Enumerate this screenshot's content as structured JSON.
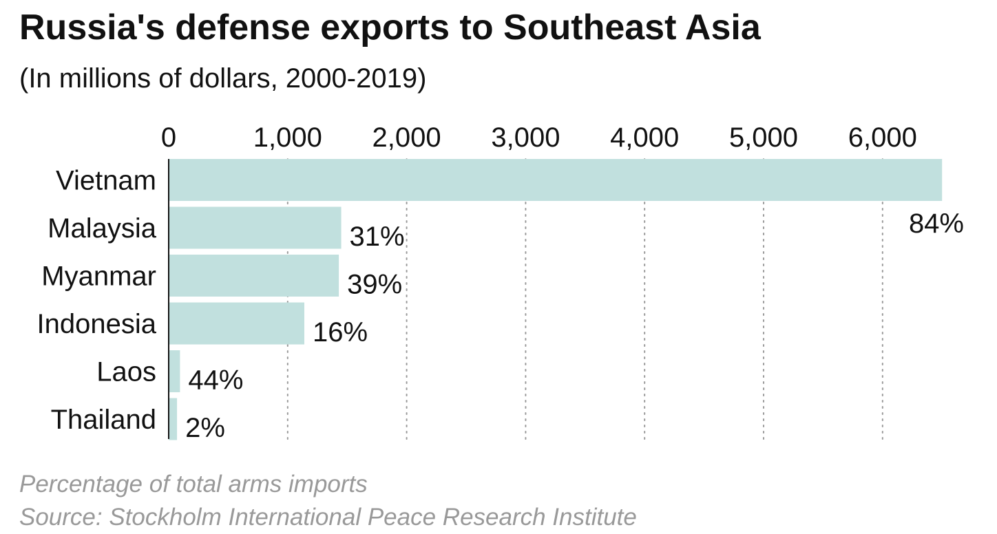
{
  "header": {
    "title": "Russia's defense exports to Southeast Asia",
    "subtitle": "(In millions of dollars, 2000-2019)"
  },
  "footer": {
    "note": "Percentage of total arms imports",
    "source": "Source: Stockholm International Peace Research Institute"
  },
  "colors": {
    "bar": "#c1e0de",
    "grid": "#999999",
    "axis": "#111111",
    "text": "#111111",
    "notes": "#999999"
  },
  "chart_data": {
    "type": "bar",
    "orientation": "horizontal",
    "title": "Russia's defense exports to Southeast Asia",
    "subtitle": "(In millions of dollars, 2000-2019)",
    "categories": [
      "Vietnam",
      "Malaysia",
      "Myanmar",
      "Indonesia",
      "Laos",
      "Thailand"
    ],
    "values": [
      6500,
      1450,
      1430,
      1140,
      95,
      70
    ],
    "data_labels": [
      "84%",
      "31%",
      "39%",
      "16%",
      "44%",
      "2%"
    ],
    "xlim": [
      0,
      6500
    ],
    "x_ticks": [
      0,
      1000,
      2000,
      3000,
      4000,
      5000,
      6000
    ],
    "x_tick_labels": [
      "0",
      "1,000",
      "2,000",
      "3,000",
      "4,000",
      "5,000",
      "6,000"
    ],
    "x_axis_position": "top",
    "grid": true,
    "grid_style": "dotted",
    "legend": false
  }
}
